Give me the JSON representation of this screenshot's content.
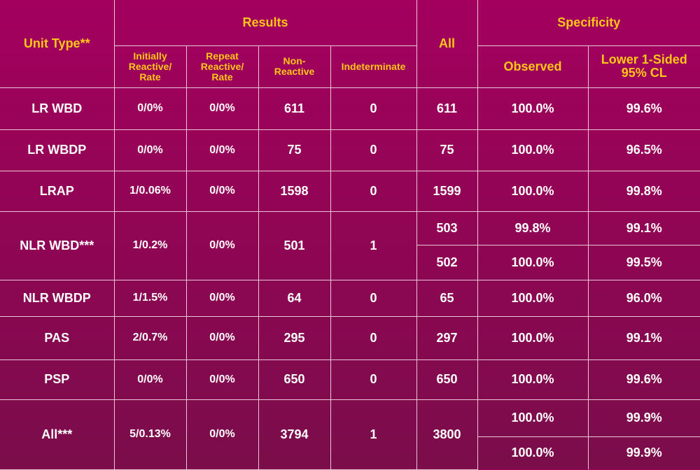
{
  "headers": {
    "unit_type": "Unit Type**",
    "results": "Results",
    "all": "All",
    "specificity": "Specificity",
    "initially_reactive": "Initially Reactive/ Rate",
    "repeat_reactive": "Repeat Reactive/ Rate",
    "non_reactive": "Non- Reactive",
    "indeterminate": "Indeterminate",
    "observed": "Observed",
    "lower_cl": "Lower 1-Sided 95% CL"
  },
  "rows": [
    {
      "unit": "LR WBD",
      "initially": "0/0%",
      "repeat": "0/0%",
      "nonreactive": "611",
      "indeterminate": "0",
      "all": "611",
      "observed": "100.0%",
      "lower": "99.6%"
    },
    {
      "unit": "LR WBDP",
      "initially": "0/0%",
      "repeat": "0/0%",
      "nonreactive": "75",
      "indeterminate": "0",
      "all": "75",
      "observed": "100.0%",
      "lower": "96.5%"
    },
    {
      "unit": "LRAP",
      "initially": "1/0.06%",
      "repeat": "0/0%",
      "nonreactive": "1598",
      "indeterminate": "0",
      "all": "1599",
      "observed": "100.0%",
      "lower": "99.8%"
    },
    {
      "unit": "NLR WBD***",
      "initially": "1/0.2%",
      "repeat": "0/0%",
      "nonreactive": "501",
      "indeterminate": "1",
      "all_a": "503",
      "observed_a": "99.8%",
      "lower_a": "99.1%",
      "all_b": "502",
      "observed_b": "100.0%",
      "lower_b": "99.5%"
    },
    {
      "unit": "NLR WBDP",
      "initially": "1/1.5%",
      "repeat": "0/0%",
      "nonreactive": "64",
      "indeterminate": "0",
      "all": "65",
      "observed": "100.0%",
      "lower": "96.0%"
    },
    {
      "unit": "PAS",
      "initially": "2/0.7%",
      "repeat": "0/0%",
      "nonreactive": "295",
      "indeterminate": "0",
      "all": "297",
      "observed": "100.0%",
      "lower": "99.1%"
    },
    {
      "unit": "PSP",
      "initially": "0/0%",
      "repeat": "0/0%",
      "nonreactive": "650",
      "indeterminate": "0",
      "all": "650",
      "observed": "100.0%",
      "lower": "99.6%"
    },
    {
      "unit": "All***",
      "initially": "5/0.13%",
      "repeat": "0/0%",
      "nonreactive": "3794",
      "indeterminate": "1",
      "all": "3800",
      "observed_a": "100.0%",
      "lower_a": "99.9%",
      "observed_b": "100.0%",
      "lower_b": "99.9%"
    }
  ]
}
